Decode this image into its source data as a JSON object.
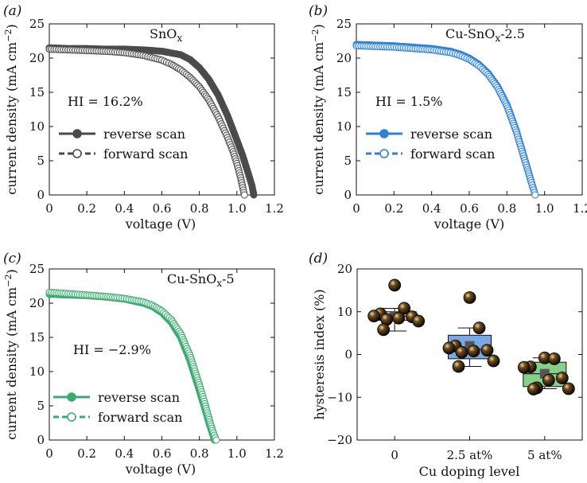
{
  "chart_data": [
    {
      "panel_label": "(a)",
      "type": "line",
      "title": "SnOx",
      "xlabel": "voltage (V)",
      "ylabel": "current density (mA cm−2)",
      "xlim": [
        0,
        1.2
      ],
      "ylim": [
        0,
        25
      ],
      "xticks": [
        "0",
        "0.2",
        "0.4",
        "0.6",
        "0.8",
        "1.0",
        "1.2"
      ],
      "yticks": [
        "0",
        "5",
        "10",
        "15",
        "20",
        "25"
      ],
      "annotation": "HI = 16.2%",
      "color": "#4a4a4a",
      "legend": [
        "reverse scan",
        "forward scan"
      ],
      "series": [
        {
          "name": "reverse scan",
          "x": [
            0,
            0.1,
            0.2,
            0.3,
            0.4,
            0.5,
            0.6,
            0.7,
            0.75,
            0.8,
            0.85,
            0.9,
            0.95,
            1.0,
            1.03,
            1.06,
            1.08,
            1.09
          ],
          "y": [
            21.5,
            21.4,
            21.4,
            21.3,
            21.3,
            21.2,
            21.0,
            20.5,
            19.8,
            18.6,
            16.9,
            14.6,
            11.6,
            8.0,
            5.8,
            3.2,
            1.4,
            0
          ]
        },
        {
          "name": "forward scan",
          "x": [
            0,
            0.1,
            0.2,
            0.3,
            0.4,
            0.5,
            0.6,
            0.65,
            0.7,
            0.75,
            0.8,
            0.85,
            0.9,
            0.95,
            0.98,
            1.0,
            1.02,
            1.04
          ],
          "y": [
            21.3,
            21.2,
            21.1,
            21.0,
            20.8,
            20.4,
            19.7,
            19.1,
            18.3,
            17.2,
            15.8,
            13.9,
            11.4,
            8.4,
            6.3,
            4.6,
            2.5,
            0
          ]
        }
      ]
    },
    {
      "panel_label": "(b)",
      "type": "line",
      "title": "Cu-SnOx-2.5",
      "xlabel": "voltage (V)",
      "ylabel": "current density (mA cm−2)",
      "xlim": [
        0,
        1.2
      ],
      "ylim": [
        0,
        25
      ],
      "xticks": [
        "0",
        "0.2",
        "0.4",
        "0.6",
        "0.8",
        "1.0",
        "1.2"
      ],
      "yticks": [
        "0",
        "5",
        "10",
        "15",
        "20",
        "25"
      ],
      "annotation": "HI = 1.5%",
      "color": "#2e7fd6",
      "legend": [
        "reverse scan",
        "forward scan"
      ],
      "series": [
        {
          "name": "reverse scan",
          "x": [
            0,
            0.1,
            0.2,
            0.3,
            0.4,
            0.5,
            0.55,
            0.6,
            0.65,
            0.7,
            0.75,
            0.8,
            0.85,
            0.88,
            0.91,
            0.93,
            0.95
          ],
          "y": [
            22.0,
            21.9,
            21.8,
            21.6,
            21.4,
            21.0,
            20.6,
            20.0,
            19.1,
            17.8,
            15.9,
            13.2,
            9.4,
            6.6,
            3.8,
            1.9,
            0
          ]
        },
        {
          "name": "forward scan",
          "x": [
            0,
            0.1,
            0.2,
            0.3,
            0.4,
            0.5,
            0.55,
            0.6,
            0.65,
            0.7,
            0.75,
            0.8,
            0.85,
            0.88,
            0.91,
            0.93,
            0.95
          ],
          "y": [
            21.8,
            21.7,
            21.6,
            21.4,
            21.2,
            20.8,
            20.4,
            19.8,
            18.9,
            17.6,
            15.7,
            13.0,
            9.2,
            6.4,
            3.7,
            1.8,
            0
          ]
        }
      ]
    },
    {
      "panel_label": "(c)",
      "type": "line",
      "title": "Cu-SnOx-5",
      "xlabel": "voltage (V)",
      "ylabel": "current density (mA cm−2)",
      "xlim": [
        0,
        1.2
      ],
      "ylim": [
        0,
        25
      ],
      "xticks": [
        "0",
        "0.2",
        "0.4",
        "0.6",
        "0.8",
        "1.0",
        "1.2"
      ],
      "yticks": [
        "0",
        "5",
        "10",
        "15",
        "20",
        "25"
      ],
      "annotation": "HI = −2.9%",
      "color": "#3caa70",
      "legend": [
        "reverse scan",
        "forward scan"
      ],
      "series": [
        {
          "name": "reverse scan",
          "x": [
            0,
            0.1,
            0.2,
            0.3,
            0.4,
            0.5,
            0.55,
            0.6,
            0.65,
            0.7,
            0.75,
            0.8,
            0.83,
            0.85,
            0.87,
            0.88
          ],
          "y": [
            21.3,
            21.2,
            21.1,
            20.9,
            20.6,
            20.0,
            19.5,
            18.6,
            17.2,
            15.0,
            11.6,
            7.2,
            4.5,
            2.6,
            0.9,
            0
          ]
        },
        {
          "name": "forward scan",
          "x": [
            0,
            0.1,
            0.2,
            0.3,
            0.4,
            0.5,
            0.55,
            0.6,
            0.65,
            0.7,
            0.75,
            0.8,
            0.83,
            0.85,
            0.87,
            0.89
          ],
          "y": [
            21.6,
            21.4,
            21.2,
            21.0,
            20.7,
            20.2,
            19.7,
            18.9,
            17.6,
            15.6,
            12.4,
            8.1,
            5.3,
            3.3,
            1.4,
            0
          ]
        }
      ]
    },
    {
      "panel_label": "(d)",
      "type": "box",
      "xlabel": "Cu doping level",
      "ylabel": "hysteresis index (%)",
      "ylim": [
        -20,
        20
      ],
      "yticks": [
        "−20",
        "−10",
        "0",
        "10",
        "20"
      ],
      "categories": [
        "0",
        "2.5 at%",
        "5 at%"
      ],
      "box_colors": [
        "#c8c8c8",
        "#7aa7e6",
        "#86d08a"
      ],
      "boxes": [
        {
          "q1": 8.0,
          "median": 9.0,
          "q3": 10.0,
          "mean": 9.0,
          "whisker_low": 5.5,
          "whisker_high": 10.8
        },
        {
          "q1": -1.0,
          "median": 1.2,
          "q3": 4.5,
          "mean": 2.0,
          "whisker_low": -2.8,
          "whisker_high": 6.2
        },
        {
          "q1": -7.5,
          "median": -4.5,
          "q3": -1.8,
          "mean": -4.5,
          "whisker_low": -8.0,
          "whisker_high": -0.8
        }
      ],
      "points": [
        [
          16.2,
          10.8,
          9.5,
          9.0,
          8.8,
          8.5,
          8.2,
          7.8,
          5.8
        ],
        [
          13.3,
          6.2,
          2.0,
          1.5,
          1.0,
          0.8,
          0.5,
          -1.5,
          -2.8
        ],
        [
          -0.8,
          -1.0,
          -2.9,
          -3.0,
          -5.5,
          -6.0,
          -7.8,
          -8.0,
          -8.1
        ]
      ]
    }
  ]
}
